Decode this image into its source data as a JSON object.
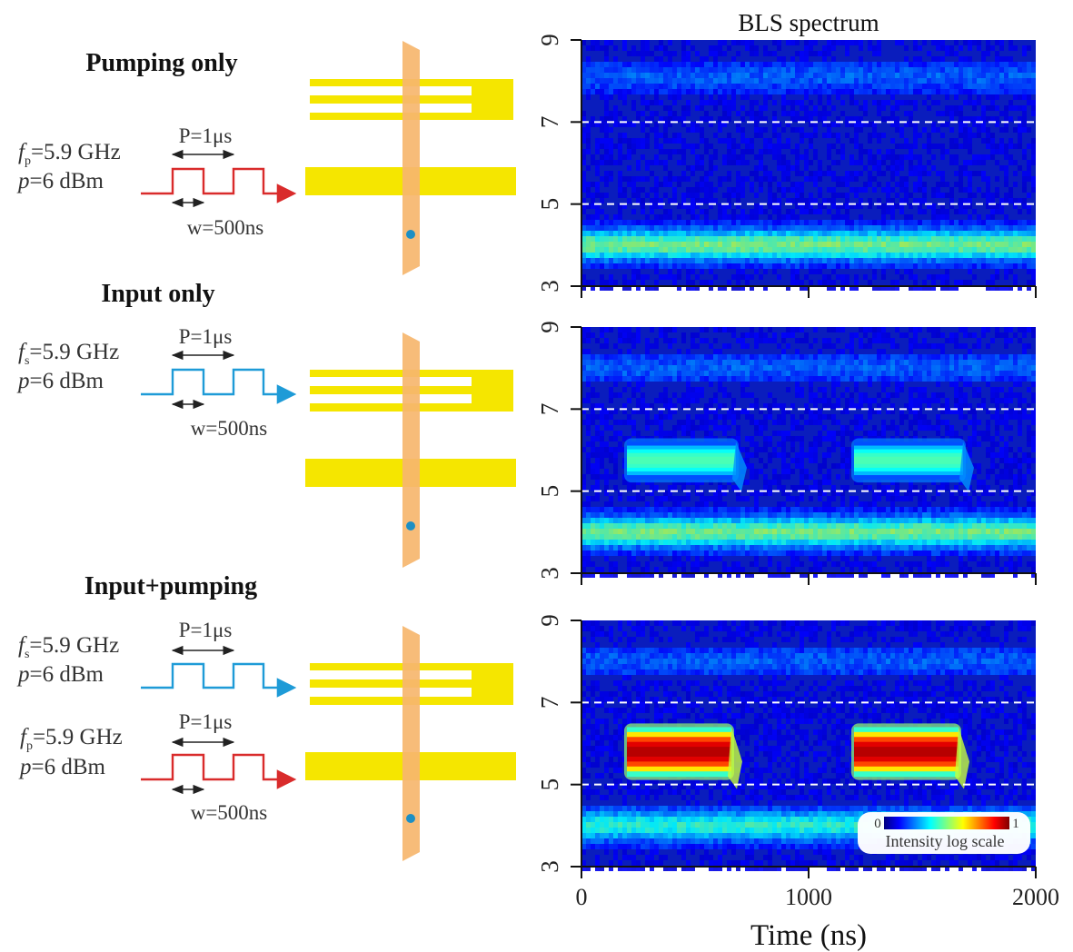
{
  "figure": {
    "spectrum_title": "BLS spectrum",
    "xaxis_label": "Time (ns)",
    "colorbar": {
      "min_label": "0",
      "max_label": "1",
      "caption": "Intensity log scale"
    },
    "panels": [
      {
        "id": "pumping-only",
        "title": "Pumping only",
        "signals": [
          {
            "freq_sym": "f",
            "freq_sub": "p",
            "freq_text": "=5.9 GHz",
            "power_sym": "p",
            "power_text": "=6 dBm",
            "period_label": "P=1μs",
            "width_label": "w=500ns",
            "color": "#d92b2b",
            "role": "pump"
          }
        ]
      },
      {
        "id": "input-only",
        "title": "Input only",
        "signals": [
          {
            "freq_sym": "f",
            "freq_sub": "s",
            "freq_text": "=5.9 GHz",
            "power_sym": "p",
            "power_text": "=6 dBm",
            "period_label": "P=1μs",
            "width_label": "w=500ns",
            "color": "#1e9bd7",
            "role": "input"
          }
        ]
      },
      {
        "id": "input-plus-pumping",
        "title": "Input+pumping",
        "signals": [
          {
            "freq_sym": "f",
            "freq_sub": "s",
            "freq_text": "=5.9 GHz",
            "power_sym": "p",
            "power_text": "=6 dBm",
            "period_label": "P=1μs",
            "width_label": "",
            "color": "#1e9bd7",
            "role": "input"
          },
          {
            "freq_sym": "f",
            "freq_sub": "p",
            "freq_text": "=5.9 GHz",
            "power_sym": "p",
            "power_text": "=6 dBm",
            "period_label": "P=1μs",
            "width_label": "w=500ns",
            "color": "#d92b2b",
            "role": "pump"
          }
        ]
      }
    ]
  },
  "chart_data": [
    {
      "type": "heatmap",
      "title": "BLS spectrum",
      "panel": "Pumping only",
      "xlabel": "Time (ns)",
      "ylabel": "",
      "xlim": [
        0,
        2000
      ],
      "ylim": [
        3,
        9
      ],
      "xticks": [
        "0",
        "1000",
        "2000"
      ],
      "yticks": [
        "3",
        "5",
        "7",
        "9"
      ],
      "reference_lines_y": [
        5,
        7
      ],
      "background_bands": [
        {
          "center": 4.0,
          "width": 0.9,
          "intensity": 0.38
        },
        {
          "center": 8.1,
          "width": 0.9,
          "intensity": 0.1
        }
      ],
      "signal_blocks": []
    },
    {
      "type": "heatmap",
      "title": "BLS spectrum",
      "panel": "Input only",
      "xlabel": "Time (ns)",
      "ylabel": "",
      "xlim": [
        0,
        2000
      ],
      "ylim": [
        3,
        9
      ],
      "xticks": [
        "0",
        "1000",
        "2000"
      ],
      "yticks": [
        "3",
        "5",
        "7",
        "9"
      ],
      "reference_lines_y": [
        5,
        7
      ],
      "background_bands": [
        {
          "center": 4.0,
          "width": 0.9,
          "intensity": 0.38
        },
        {
          "center": 8.0,
          "width": 0.9,
          "intensity": 0.1
        }
      ],
      "signal_blocks": [
        {
          "t_start": 200,
          "t_end": 680,
          "f_low": 5.3,
          "f_high": 6.2,
          "intensity": 0.45
        },
        {
          "t_start": 1200,
          "t_end": 1680,
          "f_low": 5.3,
          "f_high": 6.2,
          "intensity": 0.45
        }
      ]
    },
    {
      "type": "heatmap",
      "title": "BLS spectrum",
      "panel": "Input+pumping",
      "xlabel": "Time (ns)",
      "ylabel": "",
      "xlim": [
        0,
        2000
      ],
      "ylim": [
        3,
        9
      ],
      "xticks": [
        "0",
        "1000",
        "2000"
      ],
      "yticks": [
        "3",
        "5",
        "7",
        "9"
      ],
      "reference_lines_y": [
        5,
        7
      ],
      "background_bands": [
        {
          "center": 4.0,
          "width": 0.9,
          "intensity": 0.3
        },
        {
          "center": 8.0,
          "width": 0.9,
          "intensity": 0.1
        }
      ],
      "signal_blocks": [
        {
          "t_start": 200,
          "t_end": 660,
          "f_low": 5.2,
          "f_high": 6.4,
          "intensity": 0.95
        },
        {
          "t_start": 1200,
          "t_end": 1660,
          "f_low": 5.2,
          "f_high": 6.4,
          "intensity": 0.95
        }
      ]
    }
  ]
}
